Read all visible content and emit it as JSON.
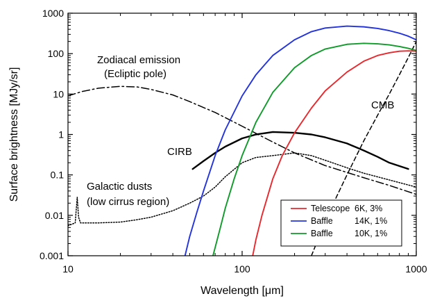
{
  "chart_data": {
    "type": "line",
    "title": "",
    "xlabel": "Wavelength [μm]",
    "ylabel": "Surface brightness [MJy/sr]",
    "xscale": "log",
    "yscale": "log",
    "xlim": [
      10,
      1000
    ],
    "ylim": [
      0.001,
      1000
    ],
    "x_ticks": [
      "10",
      "100",
      "1000"
    ],
    "y_ticks": [
      "1000",
      "100",
      "10",
      "1",
      "0.1",
      "0.01",
      "0.001"
    ],
    "grid": false,
    "legend_position": "bottom-right",
    "annotations": {
      "zodi_line1": "Zodiacal emission",
      "zodi_line2": "(Ecliptic pole)",
      "cirb": "CIRB",
      "cmb": "CMB",
      "gal_line1": "Galactic dusts",
      "gal_line2": "(low cirrus region)"
    },
    "series": [
      {
        "name": "Zodiacal emission (Ecliptic pole)",
        "style": "dash-dot",
        "color": "#000000",
        "x": [
          10,
          12,
          15,
          20,
          25,
          30,
          40,
          50,
          70,
          100,
          150,
          200,
          300,
          500,
          700,
          1000
        ],
        "y": [
          9,
          11.5,
          14,
          15.5,
          15,
          13,
          9.5,
          6.5,
          3.5,
          1.6,
          0.65,
          0.35,
          0.17,
          0.085,
          0.055,
          0.033
        ]
      },
      {
        "name": "CIRB",
        "style": "solid-thick",
        "color": "#000000",
        "x": [
          52,
          60,
          70,
          80,
          100,
          120,
          150,
          200,
          250,
          300,
          400,
          500,
          600,
          700,
          900
        ],
        "y": [
          0.14,
          0.22,
          0.35,
          0.5,
          0.8,
          1.0,
          1.15,
          1.1,
          1.0,
          0.85,
          0.6,
          0.4,
          0.28,
          0.2,
          0.14
        ]
      },
      {
        "name": "CMB",
        "style": "dashed",
        "color": "#000000",
        "x": [
          250,
          300,
          350,
          400,
          500,
          600,
          700,
          800,
          900,
          1000
        ],
        "y": [
          0.001,
          0.007,
          0.03,
          0.1,
          0.7,
          3,
          10,
          30,
          80,
          200
        ]
      },
      {
        "name": "Galactic dusts (low cirrus region)",
        "style": "dotted",
        "color": "#000000",
        "x": [
          10,
          10.5,
          11,
          11.3,
          11.5,
          11.8,
          12.5,
          15,
          20,
          25,
          30,
          40,
          50,
          60,
          70,
          80,
          100,
          120,
          150,
          200,
          250,
          300,
          400,
          500,
          700,
          1000
        ],
        "y": [
          0.0055,
          0.006,
          0.0065,
          0.028,
          0.009,
          0.0065,
          0.0065,
          0.0065,
          0.0068,
          0.0078,
          0.009,
          0.013,
          0.02,
          0.03,
          0.05,
          0.09,
          0.2,
          0.27,
          0.3,
          0.35,
          0.3,
          0.23,
          0.15,
          0.11,
          0.075,
          0.05
        ]
      },
      {
        "name": "Telescope 6K, 3%",
        "style": "solid",
        "color": "#e8282d",
        "x": [
          115,
          120,
          130,
          150,
          170,
          200,
          250,
          300,
          400,
          500,
          600,
          700,
          800,
          900,
          1000
        ],
        "y": [
          0.001,
          0.0025,
          0.01,
          0.08,
          0.3,
          1.1,
          4.5,
          12,
          35,
          65,
          90,
          105,
          115,
          117,
          115
        ]
      },
      {
        "name": "Baffle 14K, 1%",
        "style": "solid",
        "color": "#2233dd",
        "x": [
          47,
          50,
          55,
          60,
          70,
          80,
          100,
          120,
          150,
          200,
          250,
          300,
          400,
          500,
          600,
          700,
          800,
          900,
          1000
        ],
        "y": [
          0.001,
          0.003,
          0.012,
          0.04,
          0.3,
          1.3,
          9,
          30,
          90,
          220,
          350,
          430,
          480,
          460,
          420,
          370,
          320,
          270,
          220
        ]
      },
      {
        "name": "Baffle 10K, 1%",
        "style": "solid",
        "color": "#0f9a2a",
        "x": [
          68,
          70,
          75,
          80,
          90,
          100,
          120,
          150,
          200,
          250,
          300,
          400,
          500,
          600,
          700,
          800,
          900,
          1000
        ],
        "y": [
          0.001,
          0.0016,
          0.005,
          0.015,
          0.08,
          0.3,
          2,
          11,
          45,
          90,
          130,
          170,
          180,
          175,
          165,
          150,
          135,
          120
        ]
      }
    ]
  },
  "legend": [
    {
      "label": "Telescope",
      "value": "6K, 3%",
      "color": "#e8282d"
    },
    {
      "label": "Baffle",
      "value": "14K, 1%",
      "color": "#2233dd"
    },
    {
      "label": "Baffle",
      "value": "10K, 1%",
      "color": "#0f9a2a"
    }
  ]
}
